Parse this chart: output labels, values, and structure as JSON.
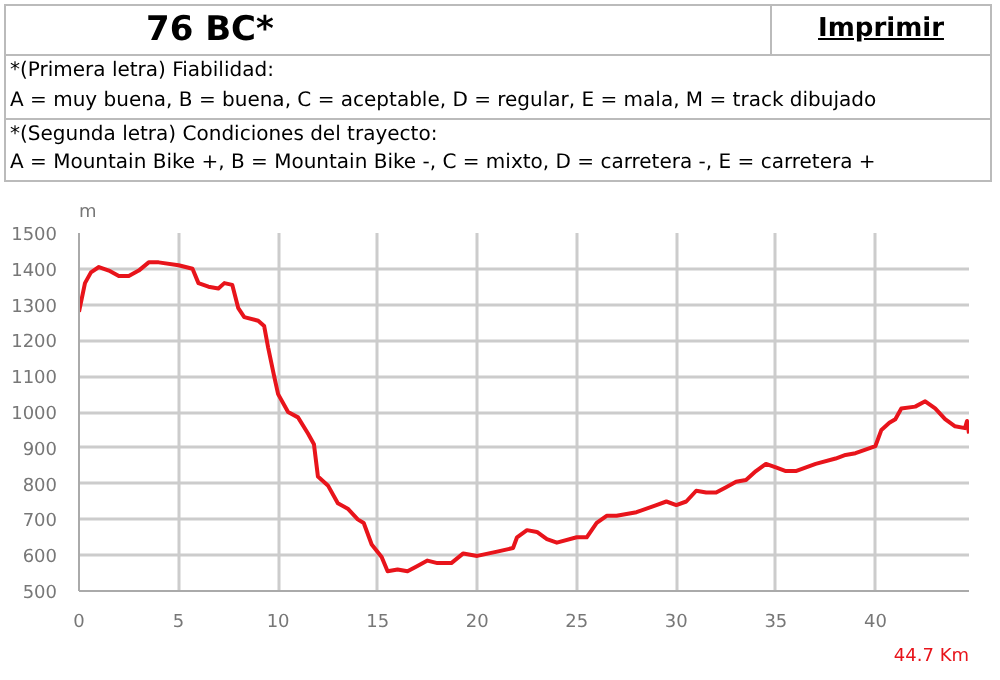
{
  "chart_data": {
    "type": "line",
    "title": "76 BC*",
    "ylabel": "m",
    "xlabel": "44.7 Km",
    "annotations": [
      "Imprimir",
      "*(Primera letra) Fiabilidad:",
      "A = muy buena, B = buena, C = aceptable, D = regular, E = mala, M = track dibujado",
      "*(Segunda letra) Condiciones del trayecto:",
      "A = Mountain Bike +, B = Mountain Bike -, C = mixto, D = carretera -, E = carretera +"
    ],
    "x": [
      0,
      0.3,
      0.6,
      1,
      1.5,
      2,
      2.5,
      3,
      3.5,
      4,
      5,
      5.7,
      6,
      6.5,
      7,
      7.3,
      7.7,
      8,
      8.3,
      9,
      9.3,
      9.5,
      9.8,
      10,
      10.5,
      11,
      11.5,
      11.8,
      12,
      12.5,
      13,
      13.5,
      14,
      14.3,
      14.7,
      15.2,
      15.5,
      16,
      16.5,
      17,
      17.5,
      18,
      18.7,
      19.3,
      20,
      21,
      21.8,
      22,
      22.5,
      23,
      23.5,
      24,
      25,
      25.5,
      26,
      26.5,
      27,
      28,
      29,
      29.5,
      30,
      30.5,
      31,
      31.5,
      32,
      32.5,
      33,
      33.5,
      34,
      34.5,
      35,
      35.5,
      36,
      37,
      38,
      38.5,
      39,
      40,
      40.3,
      40.7,
      41,
      41.3,
      42,
      42.5,
      43,
      43.5,
      44,
      44.5,
      44.6,
      44.7
    ],
    "series": [
      {
        "color": "#e8141b",
        "values": [
          1280,
          1360,
          1390,
          1405,
          1395,
          1380,
          1380,
          1395,
          1418,
          1418,
          1410,
          1400,
          1360,
          1350,
          1345,
          1360,
          1355,
          1290,
          1265,
          1255,
          1240,
          1180,
          1100,
          1050,
          1000,
          985,
          940,
          910,
          820,
          795,
          745,
          730,
          700,
          690,
          630,
          595,
          555,
          560,
          555,
          570,
          585,
          578,
          578,
          605,
          598,
          610,
          620,
          650,
          670,
          665,
          645,
          635,
          650,
          650,
          690,
          710,
          710,
          720,
          740,
          750,
          740,
          750,
          780,
          775,
          775,
          790,
          805,
          810,
          835,
          855,
          845,
          835,
          835,
          855,
          870,
          880,
          885,
          905,
          950,
          970,
          980,
          1010,
          1015,
          1030,
          1010,
          980,
          960,
          955,
          975,
          940
        ]
      }
    ],
    "xlim": [
      0,
      44.7
    ],
    "ylim": [
      500,
      1500
    ],
    "xticks": [
      0,
      5,
      10,
      15,
      20,
      25,
      30,
      35,
      40
    ],
    "yticks": [
      500,
      600,
      700,
      800,
      900,
      1000,
      1100,
      1200,
      1300,
      1400,
      1500
    ],
    "grid": true
  }
}
